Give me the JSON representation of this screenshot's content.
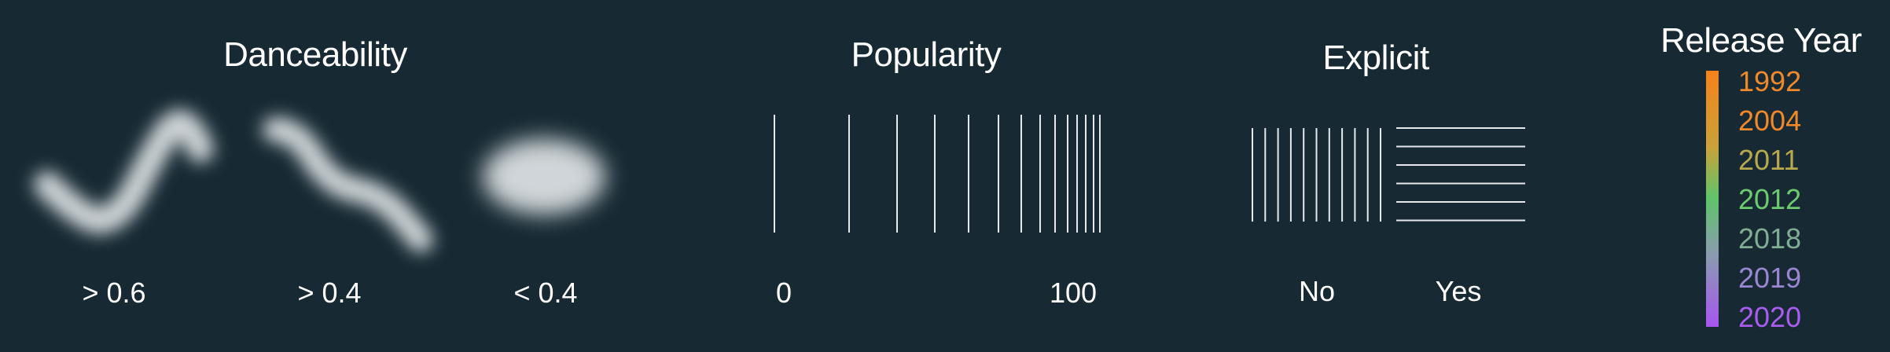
{
  "danceability": {
    "title": "Danceability",
    "levels": [
      {
        "label": "> 0.6",
        "glyph": "check-squiggle"
      },
      {
        "label": "> 0.4",
        "glyph": "s-squiggle"
      },
      {
        "label": "< 0.4",
        "glyph": "oval-blob"
      }
    ],
    "glyph_color": "#cfd5d8"
  },
  "popularity": {
    "title": "Popularity",
    "min_label": "0",
    "max_label": "100",
    "line_color": "#e6e9eb"
  },
  "explicit": {
    "title": "Explicit",
    "no_label": "No",
    "yes_label": "Yes",
    "no_pattern": "vertical-lines",
    "yes_pattern": "horizontal-lines"
  },
  "release_year": {
    "title": "Release Year",
    "years": [
      {
        "label": "1992",
        "color": "#f0892a"
      },
      {
        "label": "2004",
        "color": "#f0892a"
      },
      {
        "label": "2011",
        "color": "#b8a84e"
      },
      {
        "label": "2012",
        "color": "#6ccb6e"
      },
      {
        "label": "2018",
        "color": "#7fae93"
      },
      {
        "label": "2019",
        "color": "#9a86d2"
      },
      {
        "label": "2020",
        "color": "#a95cf0"
      }
    ],
    "gradient": [
      "#f7821b",
      "#c9a23a",
      "#5fc46a",
      "#8a9bb0",
      "#a755f0"
    ]
  }
}
